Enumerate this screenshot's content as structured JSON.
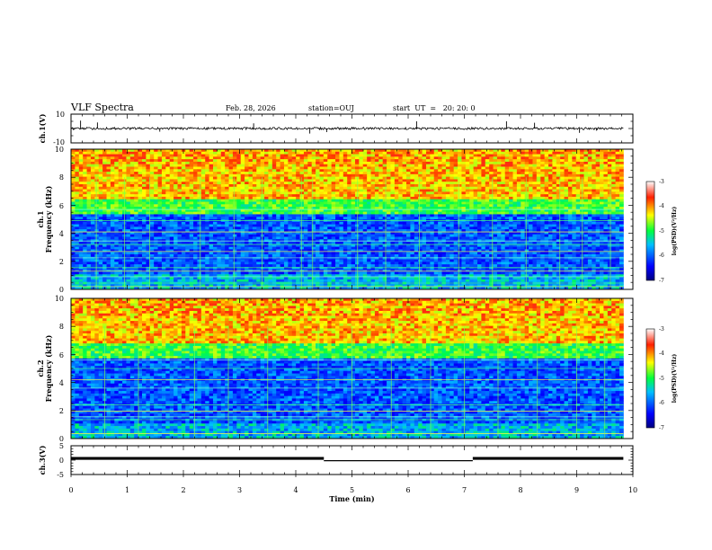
{
  "header": {
    "title": "VLF Spectra",
    "date": "Feb. 28, 2026",
    "station": "station=OUJ",
    "start": "start  UT  =   20: 20: 0"
  },
  "chart_data": [
    {
      "type": "line",
      "name": "ch1-waveform",
      "ylabel": "ch.1(V)",
      "ylim": [
        -10,
        10
      ],
      "yticks": [
        "10",
        "-10"
      ],
      "xlim": [
        0,
        10
      ],
      "baseline": 0,
      "line_color": "#000000",
      "spikes": [
        {
          "t": 0.17,
          "v": 5.5
        },
        {
          "t": 0.47,
          "v": 4.2
        },
        {
          "t": 1.58,
          "v": -2.2
        },
        {
          "t": 3.25,
          "v": 3.6
        },
        {
          "t": 4.25,
          "v": -3.5
        },
        {
          "t": 4.55,
          "v": -2.5
        },
        {
          "t": 6.15,
          "v": 5.0
        },
        {
          "t": 7.75,
          "v": 5.0
        },
        {
          "t": 8.25,
          "v": 4.0
        },
        {
          "t": 9.05,
          "v": -3.0
        },
        {
          "t": 9.35,
          "v": -1.5
        }
      ]
    },
    {
      "type": "heatmap",
      "name": "ch1-spectrogram",
      "ylabel": "ch.1\nFrequency (kHz)",
      "ylabel_line1": "ch.1",
      "ylabel_line2": "Frequency (kHz)",
      "ylim": [
        0,
        10
      ],
      "yticks": [
        "0",
        "2",
        "4",
        "6",
        "8",
        "10"
      ],
      "xlim": [
        0,
        10
      ],
      "data_end_min": 9.83,
      "value_range": [
        -7,
        -3
      ],
      "colorbar_ticks": [
        "-3",
        "-4",
        "-5",
        "-6",
        "-7"
      ],
      "colorbar_label": "log(PSD)(V²/Hz)",
      "hiss_top_khz": 6.4,
      "lines_khz": [
        0.2,
        0.45,
        0.9,
        1.3,
        1.55,
        2.25,
        2.7,
        3.2,
        3.45,
        4.1,
        4.9,
        5.7
      ],
      "spikes_min": [
        0.45,
        0.95,
        1.4,
        2.3,
        2.9,
        3.4,
        4.1,
        4.3,
        5.1,
        5.6,
        6.2,
        6.9,
        7.5,
        8.1,
        8.7,
        9.1,
        9.6
      ]
    },
    {
      "type": "heatmap",
      "name": "ch2-spectrogram",
      "ylabel": "ch.2\nFrequency (kHz)",
      "ylabel_line1": "ch.2",
      "ylabel_line2": "Frequency (kHz)",
      "ylim": [
        0,
        10
      ],
      "yticks": [
        "0",
        "2",
        "4",
        "6",
        "8",
        "10"
      ],
      "xlim": [
        0,
        10
      ],
      "data_end_min": 9.83,
      "value_range": [
        -7,
        -3
      ],
      "colorbar_ticks": [
        "-3",
        "-4",
        "-5",
        "-6",
        "-7"
      ],
      "colorbar_label": "log(PSD)(V²/Hz)",
      "hiss_top_khz": 6.8,
      "lines_khz": [
        0.35,
        1.35,
        1.55,
        1.95,
        2.4,
        3.6,
        4.2,
        5.0,
        5.6
      ],
      "spikes_min": [
        0.6,
        1.2,
        2.2,
        2.8,
        3.5,
        4.4,
        5.0,
        5.7,
        6.4,
        7.0,
        7.6,
        8.3,
        9.0,
        9.5
      ]
    },
    {
      "type": "line",
      "name": "ch3-trace",
      "ylabel": "ch.3(V)",
      "ylim": [
        -5,
        5
      ],
      "yticks": [
        "5",
        "0",
        "-5"
      ],
      "xlim": [
        0,
        10
      ],
      "xticks": [
        "0",
        "1",
        "2",
        "3",
        "4",
        "5",
        "6",
        "7",
        "8",
        "9",
        "10"
      ],
      "xlabel": "Time (min)",
      "segments": [
        {
          "t0": 0.0,
          "t1": 4.5,
          "v": 0.6
        },
        {
          "t0": 4.5,
          "t1": 7.15,
          "v": -0.2
        },
        {
          "t0": 7.15,
          "t1": 9.83,
          "v": 0.6
        }
      ]
    }
  ]
}
